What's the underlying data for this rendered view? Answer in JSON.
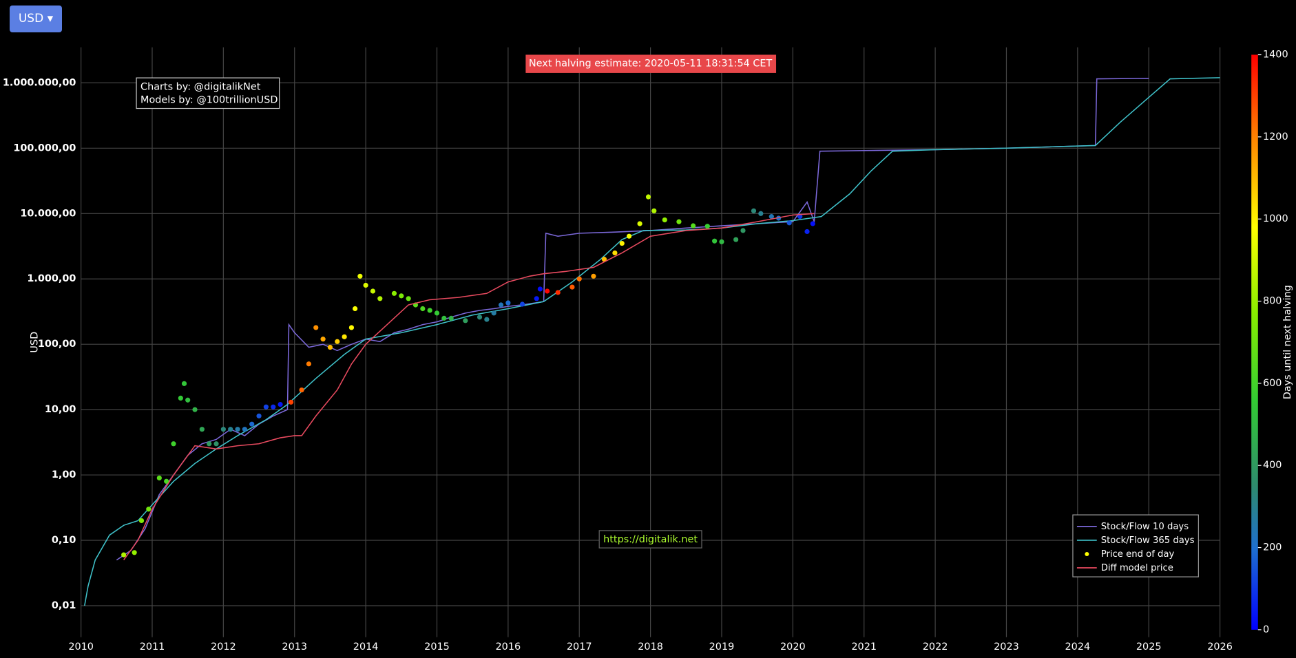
{
  "currency_button": "USD",
  "chart_data": {
    "type": "line",
    "y_label": "USD",
    "halving_note": "Next halving estimate: 2020-05-11 18:31:54 CET",
    "credits": [
      "Charts by: @digitalikNet",
      "Models by: @100trillionUSD"
    ],
    "url": "https://digitalik.net",
    "log_y": true,
    "grid": true,
    "legend": "bottom-right",
    "xlim": [
      2010,
      2026
    ],
    "xticks": [
      2010,
      2011,
      2012,
      2013,
      2014,
      2015,
      2016,
      2017,
      2018,
      2019,
      2020,
      2021,
      2022,
      2023,
      2024,
      2025,
      2026
    ],
    "ylim": [
      0.0033,
      3500000
    ],
    "yticks": [
      {
        "value": 0.01,
        "label": "0,01"
      },
      {
        "value": 0.1,
        "label": "0,10"
      },
      {
        "value": 1,
        "label": "1,00"
      },
      {
        "value": 10,
        "label": "10,00"
      },
      {
        "value": 100,
        "label": "100,00"
      },
      {
        "value": 1000,
        "label": "1.000,00"
      },
      {
        "value": 10000,
        "label": "10.000,00"
      },
      {
        "value": 100000,
        "label": "100.000,00"
      },
      {
        "value": 1000000,
        "label": "1.000.000,00"
      }
    ],
    "colorbar": {
      "title": "Days until next halving",
      "clim": [
        0,
        1400
      ],
      "ticks": [
        0,
        200,
        400,
        600,
        800,
        1000,
        1200,
        1400
      ],
      "colorscale": [
        [
          0,
          "#0000ff"
        ],
        [
          0.14,
          "#1e6fd0"
        ],
        [
          0.25,
          "#2e8b6e"
        ],
        [
          0.4,
          "#33cc33"
        ],
        [
          0.55,
          "#88ee00"
        ],
        [
          0.7,
          "#ffff00"
        ],
        [
          0.85,
          "#ff8800"
        ],
        [
          1,
          "#ff0000"
        ]
      ]
    },
    "series": [
      {
        "name": "Stock/Flow 10 days",
        "kind": "line",
        "color": "#7b68d9",
        "x": [
          2010.5,
          2010.7,
          2010.9,
          2011.1,
          2011.3,
          2011.5,
          2011.7,
          2011.9,
          2012.1,
          2012.3,
          2012.5,
          2012.7,
          2012.9,
          2012.92,
          2013.0,
          2013.2,
          2013.4,
          2013.6,
          2013.8,
          2014.0,
          2014.2,
          2014.4,
          2014.6,
          2014.8,
          2015.0,
          2015.2,
          2015.4,
          2015.6,
          2015.8,
          2016.0,
          2016.2,
          2016.5,
          2016.53,
          2016.7,
          2017.0,
          2017.5,
          2018.0,
          2018.5,
          2019.0,
          2019.5,
          2020.0,
          2020.2,
          2020.3,
          2020.38,
          2021.0,
          2022.0,
          2023.0,
          2024.25,
          2024.27,
          2025.0
        ],
        "values": [
          0.05,
          0.07,
          0.15,
          0.5,
          1,
          2,
          3,
          3.5,
          5,
          4,
          6,
          8,
          10,
          200,
          150,
          90,
          100,
          80,
          100,
          120,
          110,
          150,
          170,
          200,
          220,
          260,
          300,
          330,
          350,
          380,
          400,
          450,
          5000,
          4500,
          5000,
          5200,
          5500,
          6000,
          6500,
          7000,
          7500,
          15000,
          7500,
          90000,
          92000,
          95000,
          100000,
          110000,
          1150000,
          1170000
        ]
      },
      {
        "name": "Stock/Flow 365 days",
        "kind": "line",
        "color": "#3fc1c9",
        "x": [
          2010.05,
          2010.1,
          2010.2,
          2010.4,
          2010.6,
          2010.8,
          2011.0,
          2011.3,
          2011.6,
          2011.9,
          2012.2,
          2012.6,
          2012.9,
          2013.3,
          2013.7,
          2014.0,
          2014.5,
          2015.0,
          2015.5,
          2016.0,
          2016.5,
          2016.9,
          2017.3,
          2017.6,
          2017.9,
          2018.5,
          2019.0,
          2019.5,
          2020.0,
          2020.4,
          2020.8,
          2021.1,
          2021.4,
          2022.0,
          2023.0,
          2024.25,
          2024.6,
          2025.0,
          2025.3,
          2026.0
        ],
        "values": [
          0.01,
          0.02,
          0.05,
          0.12,
          0.17,
          0.2,
          0.35,
          0.8,
          1.5,
          2.5,
          4,
          7,
          12,
          30,
          70,
          120,
          150,
          200,
          280,
          350,
          450,
          900,
          2000,
          4000,
          5500,
          5600,
          6000,
          7000,
          7800,
          9000,
          20000,
          45000,
          90000,
          95000,
          100000,
          110000,
          250000,
          600000,
          1150000,
          1200000
        ]
      },
      {
        "name": "Price end of day",
        "kind": "scatter",
        "color": "#ffff00",
        "x": [
          2010.6,
          2010.75,
          2010.85,
          2010.95,
          2011.1,
          2011.2,
          2011.3,
          2011.4,
          2011.45,
          2011.5,
          2011.6,
          2011.7,
          2011.8,
          2011.9,
          2012.0,
          2012.1,
          2012.2,
          2012.3,
          2012.4,
          2012.5,
          2012.6,
          2012.7,
          2012.8,
          2012.95,
          2013.1,
          2013.2,
          2013.3,
          2013.4,
          2013.5,
          2013.6,
          2013.7,
          2013.8,
          2013.85,
          2013.92,
          2014.0,
          2014.1,
          2014.2,
          2014.4,
          2014.5,
          2014.6,
          2014.7,
          2014.8,
          2014.9,
          2015.0,
          2015.1,
          2015.2,
          2015.4,
          2015.6,
          2015.7,
          2015.8,
          2015.9,
          2016.0,
          2016.2,
          2016.4,
          2016.45,
          2016.55,
          2016.7,
          2016.9,
          2017.0,
          2017.2,
          2017.35,
          2017.5,
          2017.6,
          2017.7,
          2017.85,
          2017.97,
          2018.05,
          2018.2,
          2018.4,
          2018.6,
          2018.8,
          2018.9,
          2019.0,
          2019.2,
          2019.3,
          2019.45,
          2019.55,
          2019.7,
          2019.8,
          2019.95,
          2020.1,
          2020.2,
          2020.28
        ],
        "values": [
          0.06,
          0.065,
          0.2,
          0.3,
          0.9,
          0.8,
          3,
          15,
          25,
          14,
          10,
          5,
          3,
          3,
          5,
          5,
          5,
          5,
          6,
          8,
          11,
          11,
          12,
          13,
          20,
          50,
          180,
          120,
          90,
          110,
          130,
          180,
          350,
          1100,
          800,
          650,
          500,
          600,
          550,
          500,
          400,
          350,
          330,
          300,
          250,
          250,
          230,
          260,
          240,
          300,
          400,
          430,
          410,
          500,
          700,
          650,
          620,
          750,
          1000,
          1100,
          2000,
          2500,
          3500,
          4500,
          7000,
          18000,
          11000,
          8000,
          7500,
          6500,
          6400,
          3800,
          3700,
          4000,
          5500,
          11000,
          10000,
          9000,
          8500,
          7200,
          9000,
          5300,
          7000
        ],
        "days": [
          840,
          790,
          750,
          715,
          660,
          620,
          590,
          550,
          540,
          515,
          480,
          440,
          405,
          370,
          330,
          295,
          260,
          225,
          185,
          150,
          115,
          75,
          40,
          1300,
          1245,
          1210,
          1175,
          1135,
          1100,
          1065,
          1025,
          990,
          975,
          950,
          920,
          880,
          845,
          775,
          740,
          700,
          665,
          630,
          590,
          555,
          520,
          485,
          410,
          335,
          300,
          265,
          230,
          190,
          120,
          45,
          25,
          1390,
          1330,
          1260,
          1225,
          1150,
          1095,
          1040,
          1005,
          965,
          915,
          870,
          840,
          790,
          715,
          645,
          570,
          535,
          500,
          425,
          390,
          335,
          295,
          240,
          205,
          150,
          95,
          60,
          30
        ]
      },
      {
        "name": "Diff model price",
        "kind": "line",
        "color": "#e84a5f",
        "x": [
          2010.6,
          2010.8,
          2011.0,
          2011.3,
          2011.6,
          2011.9,
          2012.2,
          2012.5,
          2012.8,
          2013.0,
          2013.1,
          2013.3,
          2013.6,
          2013.8,
          2014.0,
          2014.3,
          2014.6,
          2014.9,
          2015.3,
          2015.7,
          2016.0,
          2016.3,
          2016.5,
          2016.8,
          2017.2,
          2017.6,
          2018.0,
          2018.5,
          2019.0,
          2019.5,
          2020.0,
          2020.3
        ],
        "values": [
          0.05,
          0.1,
          0.3,
          1,
          2.8,
          2.5,
          2.8,
          3,
          3.7,
          4,
          4,
          8,
          20,
          50,
          100,
          200,
          400,
          480,
          520,
          600,
          900,
          1100,
          1200,
          1300,
          1500,
          2500,
          4500,
          5500,
          6000,
          7500,
          9500,
          10000
        ]
      }
    ]
  }
}
